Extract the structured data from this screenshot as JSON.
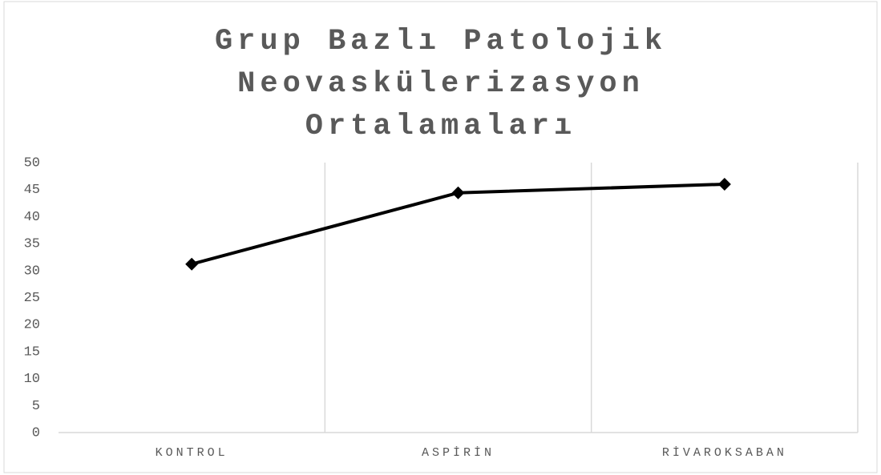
{
  "chart_data": {
    "type": "line",
    "title": "Grup Bazlı Patolojik Neovaskülerizasyon Ortalamaları",
    "categories": [
      "KONTROL",
      "ASPİRİN",
      "RİVAROKSABAN"
    ],
    "values": [
      31.2,
      44.4,
      46.0
    ],
    "color": "#000000",
    "ylim": [
      0,
      50
    ],
    "yticks": [
      0,
      5,
      10,
      15,
      20,
      25,
      30,
      35,
      40,
      45,
      50
    ],
    "grid": false
  }
}
